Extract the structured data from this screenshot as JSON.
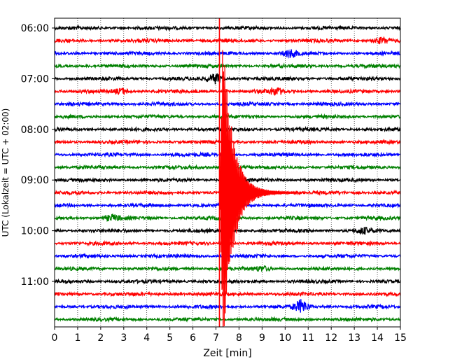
{
  "chart_data": {
    "type": "line",
    "title": "",
    "xlabel": "Zeit  [min]",
    "ylabel": "UTC (Lokalzeit = UTC + 02:00)",
    "xlim": [
      0,
      15
    ],
    "x_ticks": [
      0,
      1,
      2,
      3,
      4,
      5,
      6,
      7,
      8,
      9,
      10,
      11,
      12,
      13,
      14,
      15
    ],
    "y_tick_labels": [
      "06:00",
      "07:00",
      "08:00",
      "09:00",
      "10:00",
      "11:00"
    ],
    "row_start": "06:00",
    "row_interval_min": 15,
    "row_count": 24,
    "row_colors": [
      "#000000",
      "#ff0000",
      "#0000ff",
      "#008000"
    ],
    "grid": "vertical dotted",
    "event": {
      "row_time": "09:15",
      "onset_min": 7.15,
      "peak_min": 7.3,
      "coda_end_min": 10.5,
      "color": "#ff0000"
    },
    "local_bursts": [
      {
        "row_time": "06:30",
        "at_min": 10.2,
        "amplitude": 5
      },
      {
        "row_time": "06:15",
        "at_min": 14.2,
        "amplitude": 4
      },
      {
        "row_time": "07:15",
        "at_min": 2.9,
        "amplitude": 4
      },
      {
        "row_time": "07:15",
        "at_min": 9.6,
        "amplitude": 5
      },
      {
        "row_time": "07:00",
        "at_min": 7.0,
        "amplitude": 7
      },
      {
        "row_time": "09:45",
        "at_min": 2.5,
        "amplitude": 4
      },
      {
        "row_time": "10:00",
        "at_min": 13.4,
        "amplitude": 4
      },
      {
        "row_time": "10:45",
        "at_min": 9.0,
        "amplitude": 3
      },
      {
        "row_time": "11:30",
        "at_min": 10.7,
        "amplitude": 9
      }
    ]
  }
}
